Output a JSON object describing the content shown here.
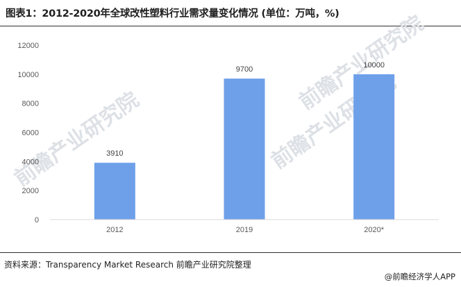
{
  "title": "图表1：2012-2020年全球改性塑料行业需求量变化情况 (单位：万吨，%)",
  "source": "资料来源：Transparency Market Research 前瞻产业研究院整理",
  "credit": "@前瞻经济学人APP",
  "watermark": "前瞻产业研究院",
  "colors": {
    "bar": "#6ea0ea",
    "axis": "#d9d9d9",
    "text": "#595959"
  },
  "chart_data": {
    "type": "bar",
    "categories": [
      "2012",
      "2019",
      "2020*"
    ],
    "values": [
      3910,
      9700,
      10000
    ],
    "data_labels": [
      "3910",
      "9700",
      "10000"
    ],
    "yticks": [
      "0",
      "2000",
      "4000",
      "6000",
      "8000",
      "10000",
      "12000"
    ],
    "ylim": [
      0,
      12000
    ],
    "grid": false,
    "legend": false
  }
}
